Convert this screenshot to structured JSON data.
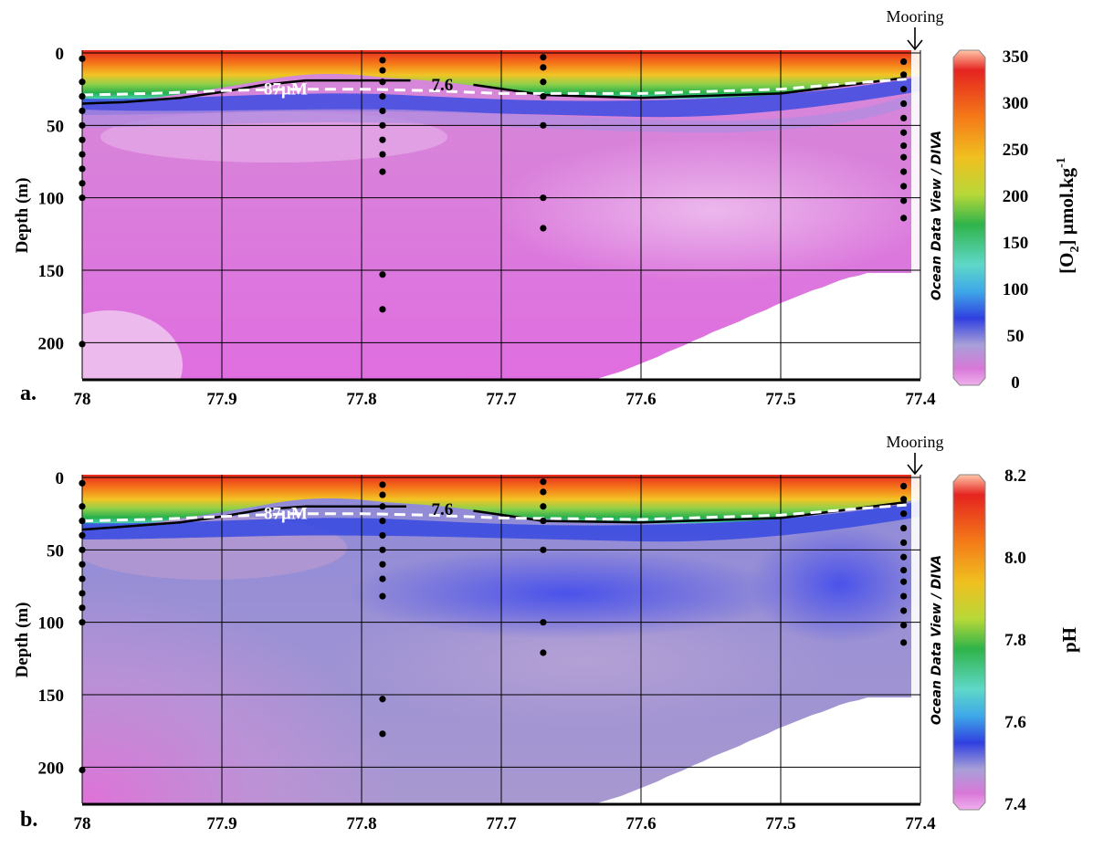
{
  "panels": [
    {
      "panel_label": "a.",
      "mooring_label": "Mooring",
      "watermark": "Ocean Data View / DIVA",
      "ylabel": "Depth (m)",
      "colorbar_label_main": "[O",
      "colorbar_label_sub": "2",
      "colorbar_label_rest": "] µmol.kg",
      "colorbar_label_sup": "-1",
      "colorbar_ticks": [
        "350",
        "300",
        "250",
        "200",
        "150",
        "100",
        "50",
        "0"
      ],
      "contour_labels": {
        "black": "7.6",
        "white": "87µM"
      }
    },
    {
      "panel_label": "b.",
      "mooring_label": "Mooring",
      "watermark": "Ocean Data View / DIVA",
      "ylabel": "Depth (m)",
      "colorbar_label_main": "pH",
      "colorbar_label_sub": "",
      "colorbar_label_rest": "",
      "colorbar_label_sup": "",
      "colorbar_ticks": [
        "8.2",
        "8.0",
        "7.8",
        "7.6",
        "7.4"
      ],
      "contour_labels": {
        "black": "7.6",
        "white": "87µM"
      }
    }
  ],
  "chart_data": [
    {
      "type": "heatmap",
      "title": "",
      "xlabel": "",
      "ylabel": "Depth (m)",
      "x_ticks": [
        "78",
        "77.9",
        "77.8",
        "77.7",
        "77.6",
        "77.5",
        "77.4"
      ],
      "y_ticks": [
        "0",
        "50",
        "100",
        "150",
        "200"
      ],
      "xlim": [
        78,
        77.4
      ],
      "ylim": [
        225,
        0
      ],
      "colorbar": {
        "label": "[O2] µmol.kg-1",
        "range": [
          0,
          350
        ]
      },
      "stations": [
        {
          "x": 78.0,
          "depths": [
            4,
            20,
            30,
            40,
            50,
            60,
            70,
            80,
            90,
            100,
            201
          ]
        },
        {
          "x": 77.785,
          "depths": [
            5,
            12,
            20,
            30,
            40,
            50,
            60,
            70,
            82,
            153,
            177
          ]
        },
        {
          "x": 77.67,
          "depths": [
            3,
            10,
            20,
            30,
            50,
            100,
            121
          ]
        },
        {
          "x": 77.412,
          "depths": [
            6,
            15,
            25,
            35,
            45,
            55,
            64,
            72,
            82,
            92,
            102,
            114
          ]
        }
      ],
      "contours": [
        {
          "level": "7.6",
          "color": "#000000",
          "x": [
            78.0,
            77.97,
            77.93,
            77.9,
            77.87,
            77.84,
            77.765
          ],
          "y": [
            35,
            34,
            31,
            27,
            22,
            19,
            19
          ]
        },
        {
          "level": "7.6",
          "color": "#000000",
          "x": [
            77.72,
            77.67,
            77.6,
            77.5,
            77.45,
            77.41
          ],
          "y": [
            22,
            29,
            31,
            28,
            22,
            17
          ]
        },
        {
          "level": "87µM",
          "color": "#ffffff",
          "x": [
            78.0,
            77.95,
            77.9,
            77.85,
            77.8,
            77.75,
            77.7,
            77.6,
            77.5,
            77.45,
            77.41
          ],
          "y": [
            29,
            28,
            26,
            25,
            25,
            26,
            28,
            28,
            25,
            21,
            18
          ]
        }
      ],
      "annotations": [
        "87µM",
        "7.6",
        "Mooring"
      ]
    },
    {
      "type": "heatmap",
      "title": "",
      "xlabel": "",
      "ylabel": "Depth (m)",
      "x_ticks": [
        "78",
        "77.9",
        "77.8",
        "77.7",
        "77.6",
        "77.5",
        "77.4"
      ],
      "y_ticks": [
        "0",
        "50",
        "100",
        "150",
        "200"
      ],
      "xlim": [
        78,
        77.4
      ],
      "ylim": [
        225,
        0
      ],
      "colorbar": {
        "label": "pH",
        "range": [
          7.4,
          8.2
        ]
      },
      "stations": [
        {
          "x": 78.0,
          "depths": [
            4,
            20,
            30,
            40,
            50,
            60,
            70,
            80,
            90,
            100,
            202
          ]
        },
        {
          "x": 77.785,
          "depths": [
            5,
            12,
            20,
            30,
            40,
            50,
            60,
            70,
            82,
            153,
            177
          ]
        },
        {
          "x": 77.67,
          "depths": [
            3,
            10,
            20,
            30,
            50,
            100,
            121
          ]
        },
        {
          "x": 77.412,
          "depths": [
            6,
            15,
            25,
            35,
            45,
            55,
            64,
            72,
            82,
            92,
            102,
            114
          ]
        }
      ],
      "contours": [
        {
          "level": "7.6",
          "color": "#000000",
          "x": [
            78.0,
            77.97,
            77.93,
            77.9,
            77.87,
            77.84,
            77.768
          ],
          "y": [
            36,
            34,
            31,
            27,
            22,
            20,
            20
          ]
        },
        {
          "level": "7.6",
          "color": "#000000",
          "x": [
            77.72,
            77.67,
            77.6,
            77.5,
            77.45,
            77.41
          ],
          "y": [
            23,
            30,
            31,
            28,
            22,
            17
          ]
        },
        {
          "level": "87µM",
          "color": "#ffffff",
          "x": [
            78.0,
            77.95,
            77.9,
            77.85,
            77.8,
            77.75,
            77.7,
            77.6,
            77.5,
            77.45,
            77.41
          ],
          "y": [
            30,
            29,
            27,
            25,
            25,
            26,
            28,
            29,
            26,
            22,
            19
          ]
        }
      ],
      "annotations": [
        "87µM",
        "7.6",
        "Mooring"
      ]
    }
  ]
}
